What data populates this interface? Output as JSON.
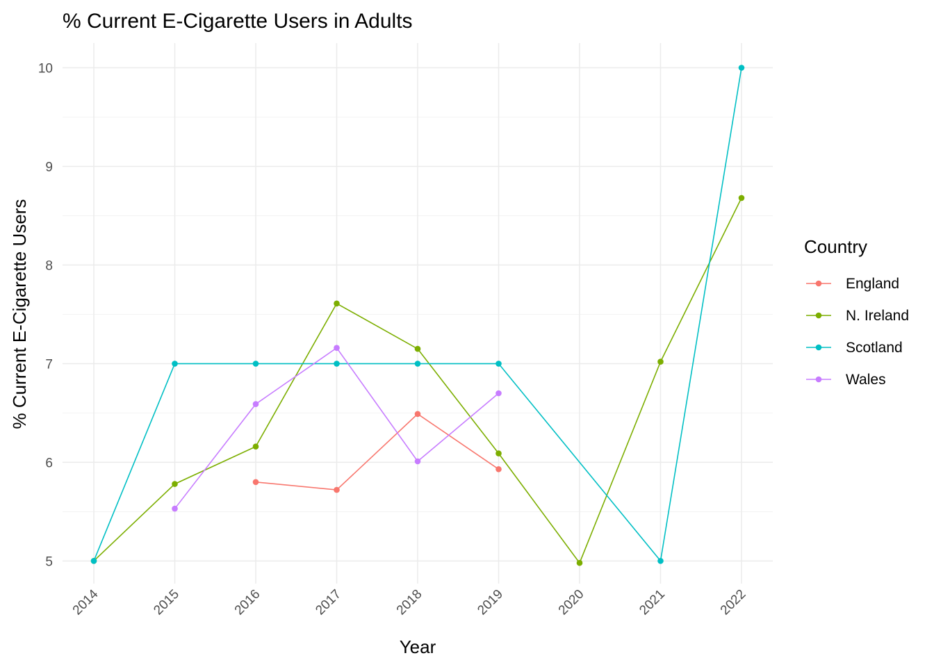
{
  "chart_data": {
    "type": "line",
    "title": "% Current E-Cigarette Users in Adults",
    "xlabel": "Year",
    "ylabel": "% Current E-Cigarette Users",
    "categories": [
      "2014",
      "2015",
      "2016",
      "2017",
      "2018",
      "2019",
      "2020",
      "2021",
      "2022"
    ],
    "y_ticks": [
      "5",
      "6",
      "7",
      "8",
      "9",
      "10"
    ],
    "ylim": [
      4.77,
      10.25
    ],
    "grid": true,
    "legend": {
      "title": "Country",
      "position": "right"
    },
    "series": [
      {
        "name": "England",
        "color": "#F8766D",
        "values": [
          null,
          null,
          5.8,
          5.72,
          6.49,
          5.93,
          null,
          null,
          null
        ]
      },
      {
        "name": "N. Ireland",
        "color": "#7CAE00",
        "values": [
          5.0,
          5.78,
          6.16,
          7.61,
          7.15,
          6.09,
          4.98,
          7.02,
          8.68
        ]
      },
      {
        "name": "Scotland",
        "color": "#00BFC4",
        "values": [
          5.0,
          7.0,
          7.0,
          7.0,
          7.0,
          7.0,
          null,
          5.0,
          10.0
        ]
      },
      {
        "name": "Wales",
        "color": "#C77CFF",
        "values": [
          null,
          5.53,
          6.59,
          7.16,
          6.01,
          6.7,
          null,
          null,
          null
        ]
      }
    ]
  }
}
